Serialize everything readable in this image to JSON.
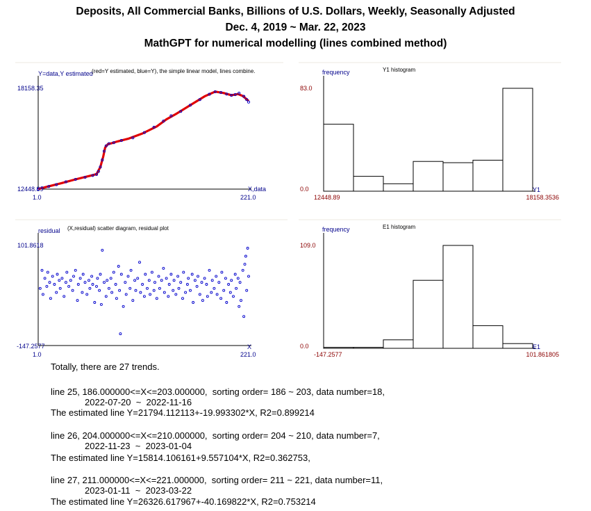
{
  "header": {
    "line1": "Deposits, All Commercial Banks, Billions of U.S. Dollars, Weekly, Seasonally Adjusted",
    "line2": "Dec. 4, 2019 ~ Mar. 22, 2023",
    "line3": "MathGPT for numerical modelling (lines combined method)"
  },
  "colors": {
    "axis_label": "#00008b",
    "value_label": "#8b0000",
    "estimated": "#e00000",
    "data": "#0000cc"
  },
  "chart_data": [
    {
      "type": "line",
      "ylabel": "Y=data,Y estimated",
      "caption": "(red=Y estimated, blue=Y), the simple linear model, lines combine.",
      "xlabel": "X,data",
      "xlim": [
        1.0,
        221.0
      ],
      "ylim": [
        12448.89,
        18158.35
      ],
      "x_tick_labels": [
        "1.0",
        "221.0"
      ],
      "y_tick_labels": [
        "12448.89",
        "18158.35"
      ],
      "series": [
        {
          "name": "Y estimated",
          "color": "#e00000",
          "points": [
            [
              1,
              12448.9
            ],
            [
              10,
              12580
            ],
            [
              25,
              12780
            ],
            [
              40,
              13000
            ],
            [
              55,
              13200
            ],
            [
              62,
              13300
            ],
            [
              66,
              13700
            ],
            [
              69,
              14300
            ],
            [
              71,
              14800
            ],
            [
              74,
              15000
            ],
            [
              78,
              15050
            ],
            [
              84,
              15150
            ],
            [
              95,
              15300
            ],
            [
              110,
              15600
            ],
            [
              125,
              16000
            ],
            [
              135,
              16400
            ],
            [
              145,
              16700
            ],
            [
              160,
              17200
            ],
            [
              175,
              17700
            ],
            [
              186,
              17970
            ],
            [
              195,
              17890
            ],
            [
              203,
              17770
            ],
            [
              210,
              17830
            ],
            [
              215,
              17720
            ],
            [
              221,
              17440
            ]
          ]
        },
        {
          "name": "Y",
          "color": "#0000cc",
          "points": [
            [
              1,
              12449
            ],
            [
              5,
              12520
            ],
            [
              12,
              12600
            ],
            [
              20,
              12700
            ],
            [
              30,
              12860
            ],
            [
              40,
              13000
            ],
            [
              50,
              13120
            ],
            [
              58,
              13220
            ],
            [
              62,
              13280
            ],
            [
              64,
              13450
            ],
            [
              66,
              13700
            ],
            [
              68,
              14100
            ],
            [
              70,
              14600
            ],
            [
              72,
              14900
            ],
            [
              75,
              15020
            ],
            [
              80,
              15080
            ],
            [
              88,
              15200
            ],
            [
              100,
              15350
            ],
            [
              112,
              15650
            ],
            [
              122,
              15950
            ],
            [
              132,
              16300
            ],
            [
              140,
              16600
            ],
            [
              150,
              16850
            ],
            [
              160,
              17200
            ],
            [
              170,
              17520
            ],
            [
              180,
              17820
            ],
            [
              186,
              17960
            ],
            [
              192,
              17920
            ],
            [
              198,
              17830
            ],
            [
              203,
              17760
            ],
            [
              207,
              17800
            ],
            [
              211,
              17880
            ],
            [
              216,
              17700
            ],
            [
              219,
              17520
            ],
            [
              221,
              17380
            ]
          ]
        }
      ]
    },
    {
      "type": "bar",
      "title": "Y1 histogram",
      "ylabel": "frequency",
      "xlabel": "Y1",
      "xlim": [
        12448.89,
        18158.3536
      ],
      "ylim": [
        0.0,
        83.0
      ],
      "x_tick_labels": [
        "12448.89",
        "18158.3536"
      ],
      "y_tick_labels": [
        "0.0",
        "83.0"
      ],
      "values": [
        54,
        12,
        6,
        24,
        23,
        25,
        83
      ]
    },
    {
      "type": "scatter",
      "ylabel": "residual",
      "caption": "(X,residual) scatter diagram, residual plot",
      "xlabel": "X",
      "xlim": [
        1.0,
        221.0
      ],
      "ylim": [
        -147.2577,
        101.8618
      ],
      "x_tick_labels": [
        "1.0",
        "221.0"
      ],
      "y_tick_labels": [
        "-147.2577",
        "101.8618"
      ],
      "points": [
        [
          3,
          -5
        ],
        [
          5,
          40
        ],
        [
          6,
          -20
        ],
        [
          8,
          20
        ],
        [
          10,
          0
        ],
        [
          11,
          35
        ],
        [
          13,
          10
        ],
        [
          14,
          -30
        ],
        [
          16,
          25
        ],
        [
          18,
          5
        ],
        [
          20,
          -15
        ],
        [
          21,
          30
        ],
        [
          23,
          15
        ],
        [
          24,
          -5
        ],
        [
          26,
          20
        ],
        [
          28,
          -25
        ],
        [
          30,
          10
        ],
        [
          31,
          35
        ],
        [
          33,
          0
        ],
        [
          35,
          15
        ],
        [
          37,
          -10
        ],
        [
          38,
          25
        ],
        [
          40,
          40
        ],
        [
          42,
          -35
        ],
        [
          43,
          5
        ],
        [
          45,
          20
        ],
        [
          47,
          -15
        ],
        [
          48,
          30
        ],
        [
          50,
          10
        ],
        [
          52,
          -20
        ],
        [
          54,
          15
        ],
        [
          55,
          -5
        ],
        [
          57,
          25
        ],
        [
          58,
          5
        ],
        [
          60,
          -40
        ],
        [
          62,
          0
        ],
        [
          63,
          20
        ],
        [
          65,
          -10
        ],
        [
          66,
          30
        ],
        [
          67,
          -45
        ],
        [
          68,
          90
        ],
        [
          70,
          10
        ],
        [
          72,
          -25
        ],
        [
          73,
          15
        ],
        [
          75,
          -5
        ],
        [
          77,
          20
        ],
        [
          78,
          -15
        ],
        [
          80,
          35
        ],
        [
          82,
          5
        ],
        [
          83,
          -30
        ],
        [
          85,
          50
        ],
        [
          86,
          -10
        ],
        [
          87,
          -118
        ],
        [
          88,
          30
        ],
        [
          90,
          -50
        ],
        [
          92,
          10
        ],
        [
          93,
          -20
        ],
        [
          95,
          25
        ],
        [
          97,
          -5
        ],
        [
          98,
          40
        ],
        [
          100,
          -35
        ],
        [
          102,
          15
        ],
        [
          103,
          -10
        ],
        [
          105,
          20
        ],
        [
          107,
          60
        ],
        [
          108,
          -15
        ],
        [
          110,
          5
        ],
        [
          112,
          -25
        ],
        [
          113,
          30
        ],
        [
          115,
          -5
        ],
        [
          117,
          15
        ],
        [
          118,
          -20
        ],
        [
          120,
          35
        ],
        [
          122,
          -10
        ],
        [
          123,
          10
        ],
        [
          125,
          -30
        ],
        [
          127,
          25
        ],
        [
          128,
          -5
        ],
        [
          130,
          15
        ],
        [
          132,
          45
        ],
        [
          133,
          -15
        ],
        [
          135,
          20
        ],
        [
          137,
          -25
        ],
        [
          138,
          5
        ],
        [
          140,
          30
        ],
        [
          142,
          -10
        ],
        [
          143,
          15
        ],
        [
          145,
          -20
        ],
        [
          147,
          25
        ],
        [
          148,
          -5
        ],
        [
          150,
          10
        ],
        [
          152,
          -30
        ],
        [
          153,
          35
        ],
        [
          155,
          -15
        ],
        [
          157,
          5
        ],
        [
          158,
          20
        ],
        [
          160,
          -10
        ],
        [
          162,
          30
        ],
        [
          163,
          -40
        ],
        [
          165,
          15
        ],
        [
          167,
          0
        ],
        [
          168,
          25
        ],
        [
          170,
          -20
        ],
        [
          172,
          10
        ],
        [
          173,
          -35
        ],
        [
          175,
          20
        ],
        [
          177,
          5
        ],
        [
          178,
          -25
        ],
        [
          180,
          40
        ],
        [
          182,
          -15
        ],
        [
          183,
          15
        ],
        [
          185,
          -5
        ],
        [
          187,
          25
        ],
        [
          188,
          -20
        ],
        [
          190,
          10
        ],
        [
          192,
          -30
        ],
        [
          193,
          35
        ],
        [
          195,
          -10
        ],
        [
          197,
          20
        ],
        [
          198,
          -40
        ],
        [
          200,
          5
        ],
        [
          202,
          -15
        ],
        [
          203,
          15
        ],
        [
          205,
          -25
        ],
        [
          207,
          30
        ],
        [
          208,
          -5
        ],
        [
          210,
          20
        ],
        [
          211,
          -50
        ],
        [
          212,
          10
        ],
        [
          213,
          -35
        ],
        [
          215,
          40
        ],
        [
          216,
          -75
        ],
        [
          217,
          55
        ],
        [
          218,
          75
        ],
        [
          219,
          -10
        ],
        [
          220,
          95
        ],
        [
          221,
          25
        ]
      ]
    },
    {
      "type": "bar",
      "title": "E1 histogram",
      "ylabel": "frequency",
      "xlabel": "E1",
      "xlim": [
        -147.2577,
        101.861805
      ],
      "ylim": [
        0.0,
        109.0
      ],
      "x_tick_labels": [
        "-147.2577",
        "101.861805"
      ],
      "y_tick_labels": [
        "0.0",
        "109.0"
      ],
      "values": [
        1,
        1,
        9,
        72,
        109,
        24,
        5
      ]
    }
  ],
  "results": {
    "summary": "Totally, there are 27 trends.",
    "trends": [
      {
        "line": "line 25, 186.000000<=X<=203.000000,  sorting order= 186 ~ 203, data number=18,",
        "dates": "2022-07-20  ~  2022-11-16",
        "estimate": "The estimated line Y=21794.112113+-19.993302*X, R2=0.899214"
      },
      {
        "line": "line 26, 204.000000<=X<=210.000000,  sorting order= 204 ~ 210, data number=7,",
        "dates": "2022-11-23  ~  2023-01-04",
        "estimate": "The estimated line Y=15814.106161+9.557104*X, R2=0.362753,"
      },
      {
        "line": "line 27, 211.000000<=X<=221.000000,  sorting order= 211 ~ 221, data number=11,",
        "dates": "2023-01-11  ~  2023-03-22",
        "estimate": "The estimated line Y=26326.617967+-40.169822*X, R2=0.753214"
      }
    ]
  }
}
